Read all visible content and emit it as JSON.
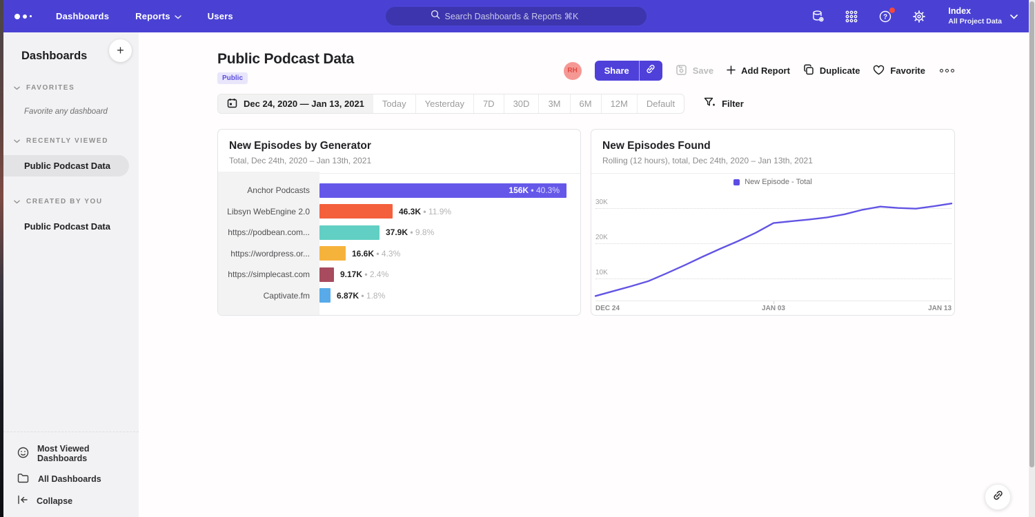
{
  "nav": {
    "items": [
      {
        "label": "Dashboards",
        "has_chevron": false
      },
      {
        "label": "Reports",
        "has_chevron": true
      },
      {
        "label": "Users",
        "has_chevron": false
      }
    ],
    "search_placeholder": "Search Dashboards & Reports ⌘K",
    "workspace_name": "Index",
    "workspace_subtitle": "All Project Data"
  },
  "sidebar": {
    "title": "Dashboards",
    "add_label": "+",
    "sections": [
      {
        "label": "FAVORITES",
        "empty_text": "Favorite any dashboard",
        "items": []
      },
      {
        "label": "RECENTLY VIEWED",
        "empty_text": "",
        "items": [
          {
            "label": "Public Podcast Data",
            "active": true
          }
        ]
      },
      {
        "label": "CREATED BY YOU",
        "empty_text": "",
        "items": [
          {
            "label": "Public Podcast Data",
            "active": false
          }
        ]
      }
    ],
    "footer_items": [
      {
        "icon": "smiley-icon",
        "label": "Most Viewed Dashboards"
      },
      {
        "icon": "folder-icon",
        "label": "All Dashboards"
      },
      {
        "icon": "collapse-icon",
        "label": "Collapse"
      }
    ]
  },
  "header": {
    "title": "Public Podcast Data",
    "badge": "Public",
    "avatar_initials": "RH",
    "share_label": "Share",
    "save_label": "Save",
    "add_report_label": "Add Report",
    "duplicate_label": "Duplicate",
    "favorite_label": "Favorite"
  },
  "datebar": {
    "range": "Dec 24, 2020 — Jan 13, 2021",
    "presets": [
      "Today",
      "Yesterday",
      "7D",
      "30D",
      "3M",
      "6M",
      "12M",
      "Default"
    ],
    "filter_label": "Filter"
  },
  "chart_data": [
    {
      "type": "bar",
      "orientation": "horizontal",
      "title": "New Episodes by Generator",
      "subtitle": "Total, Dec 24th, 2020 – Jan 13th, 2021",
      "categories": [
        "Anchor Podcasts",
        "Libsyn WebEngine 2.0",
        "https://podbean.com...",
        "https://wordpress.or...",
        "https://simplecast.com",
        "Captivate.fm"
      ],
      "values": [
        156000,
        46300,
        37900,
        16600,
        9170,
        6870
      ],
      "value_labels": [
        "156K",
        "46.3K",
        "37.9K",
        "16.6K",
        "9.17K",
        "6.87K"
      ],
      "percent_labels": [
        "40.3%",
        "11.9%",
        "9.8%",
        "4.3%",
        "2.4%",
        "1.8%"
      ],
      "separator": "•",
      "colors": [
        "#6558e9",
        "#f4603c",
        "#62cfc4",
        "#f6b33c",
        "#a84b5e",
        "#58abe8"
      ],
      "label_inside": [
        true,
        false,
        false,
        false,
        false,
        false
      ],
      "xlim": [
        0,
        156000
      ]
    },
    {
      "type": "line",
      "title": "New Episodes Found",
      "subtitle": "Rolling (12 hours), total, Dec 24th, 2020 – Jan 13th, 2021",
      "legend": [
        "New Episode - Total"
      ],
      "legend_position": "top",
      "line_color": "#6254e4",
      "x_tick_labels": [
        "DEC 24",
        "JAN 03",
        "JAN 13"
      ],
      "y_ticks": [
        10000,
        20000,
        30000
      ],
      "y_tick_labels": [
        "10K",
        "20K",
        "30K"
      ],
      "ylim": [
        3600,
        33200
      ],
      "grid": "dotted-horizontal",
      "x_days": [
        "Dec 24",
        "Dec 25",
        "Dec 26",
        "Dec 27",
        "Dec 28",
        "Dec 29",
        "Dec 30",
        "Dec 31",
        "Jan 01",
        "Jan 02",
        "Jan 03",
        "Jan 04",
        "Jan 05",
        "Jan 06",
        "Jan 07",
        "Jan 08",
        "Jan 09",
        "Jan 10",
        "Jan 11",
        "Jan 12",
        "Jan 13"
      ],
      "values": [
        4900,
        6300,
        7700,
        9200,
        11400,
        13700,
        16100,
        18400,
        20600,
        23000,
        25800,
        26300,
        26800,
        27400,
        28300,
        29600,
        30500,
        30100,
        29900,
        30600,
        31400
      ]
    }
  ],
  "colors": {
    "nav_bg": "#4a41d4",
    "accent": "#4f40da",
    "badge_bg": "#e9e6fb",
    "badge_text": "#5b4fe0",
    "avatar_bg": "#f59894",
    "avatar_text": "#e04a42",
    "notification_dot": "#f5483d",
    "sidebar_bg": "#f2f2f4",
    "selected_item_bg": "#e3e3e6"
  }
}
